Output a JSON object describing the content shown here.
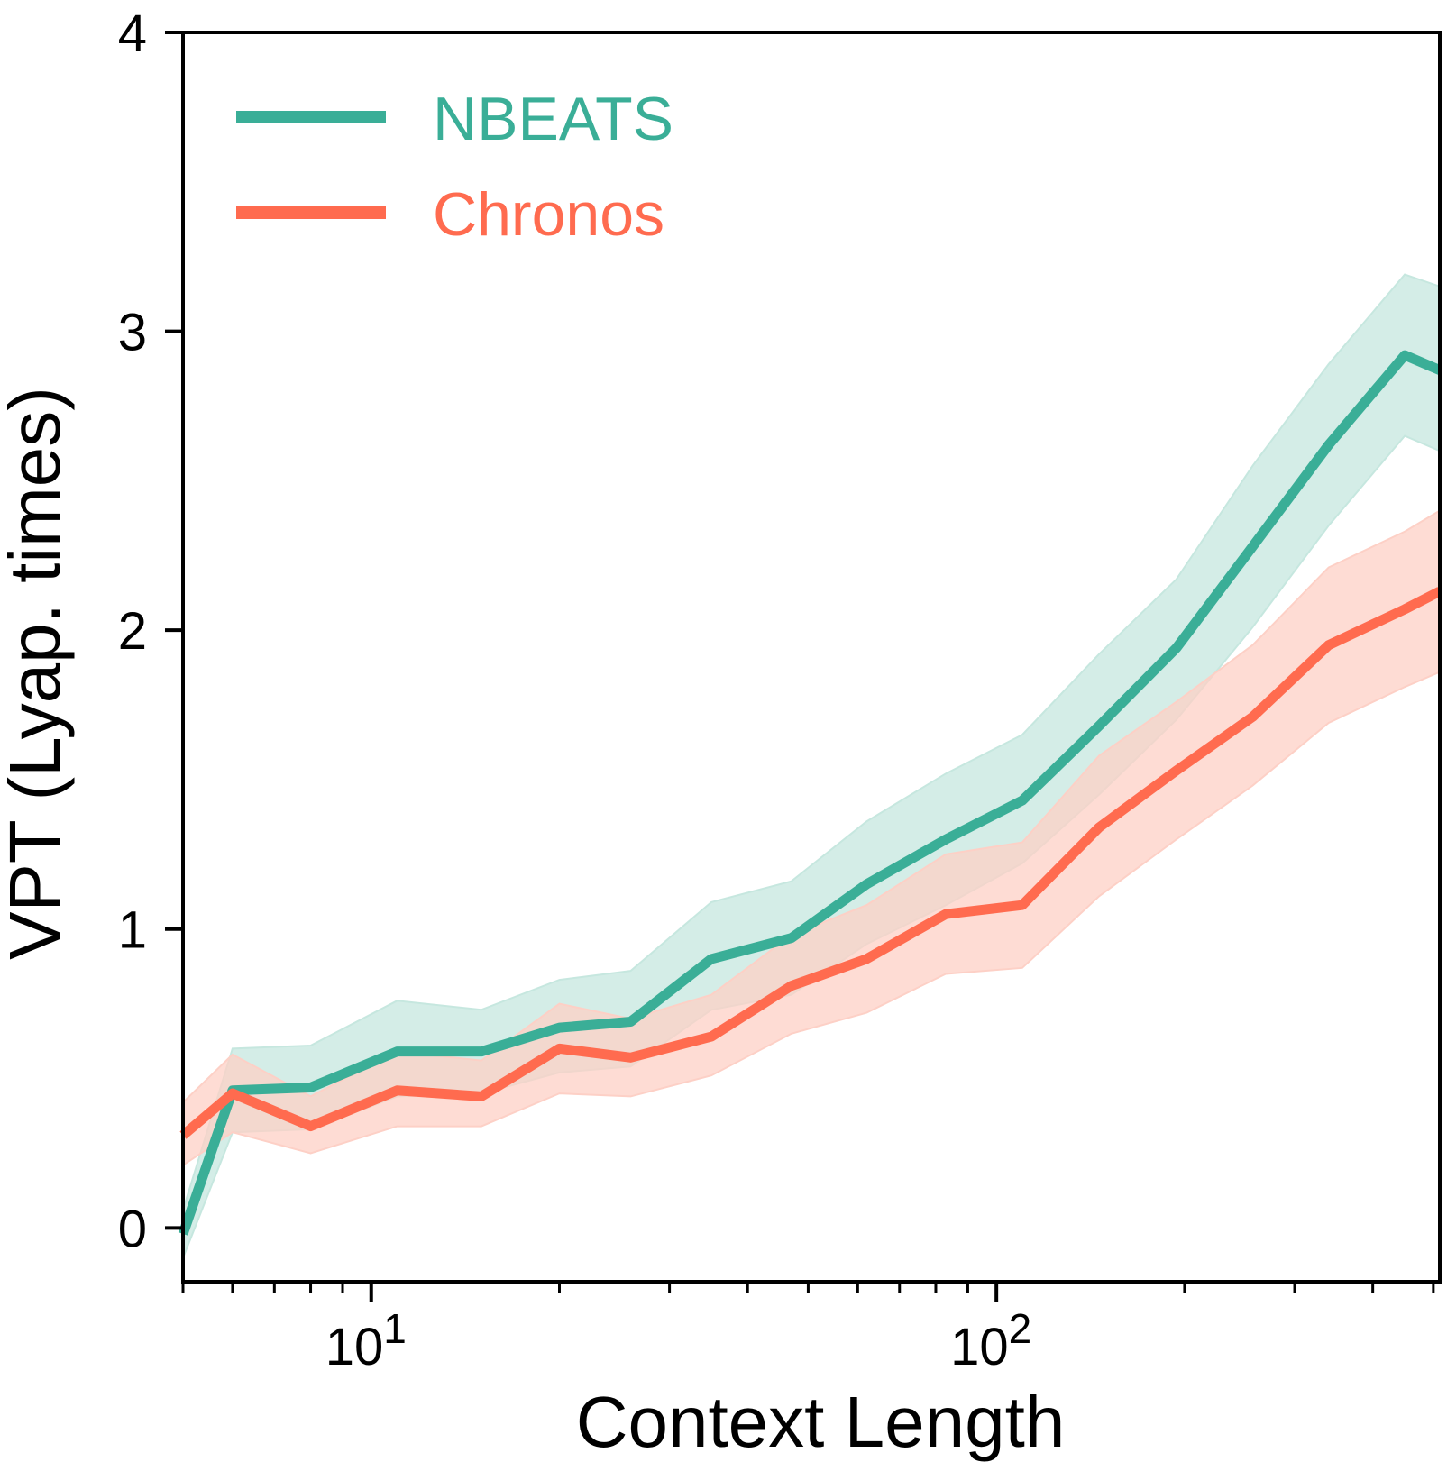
{
  "chart_data": {
    "type": "line",
    "title": "",
    "xlabel": "Context Length",
    "ylabel": "VPT (Lyap. times)",
    "xscale": "log",
    "xlim": [
      5,
      512
    ],
    "ylim": [
      -0.18,
      4
    ],
    "yticks": [
      0,
      1,
      2,
      3,
      4
    ],
    "ytick_labels": [
      "0",
      "1",
      "2",
      "3",
      "4"
    ],
    "xticks_major": [
      10,
      100
    ],
    "xtick_base_labels": [
      "10",
      "10"
    ],
    "xtick_exp_labels": [
      "1",
      "2"
    ],
    "grid": false,
    "legend_position": "top-left",
    "x": [
      5,
      6,
      8,
      11,
      15,
      20,
      26,
      35,
      47,
      62,
      83,
      110,
      146,
      194,
      257,
      340,
      450,
      512
    ],
    "series": [
      {
        "name": "NBEATS",
        "color": "#3AAE97",
        "band_color": "#C6E7DF",
        "values": [
          -0.02,
          0.46,
          0.47,
          0.59,
          0.59,
          0.67,
          0.69,
          0.9,
          0.97,
          1.15,
          1.3,
          1.43,
          1.68,
          1.94,
          2.28,
          2.62,
          2.92,
          2.87
        ],
        "lower": [
          -0.1,
          0.32,
          0.33,
          0.44,
          0.45,
          0.52,
          0.54,
          0.73,
          0.78,
          0.95,
          1.08,
          1.22,
          1.45,
          1.7,
          2.01,
          2.35,
          2.65,
          2.6
        ],
        "upper": [
          0.06,
          0.6,
          0.61,
          0.76,
          0.73,
          0.83,
          0.86,
          1.09,
          1.16,
          1.36,
          1.52,
          1.65,
          1.92,
          2.17,
          2.55,
          2.89,
          3.19,
          3.15
        ]
      },
      {
        "name": "Chronos",
        "color": "#FF6B4F",
        "band_color": "#FDD0C6",
        "values": [
          0.31,
          0.45,
          0.34,
          0.46,
          0.44,
          0.6,
          0.57,
          0.64,
          0.81,
          0.9,
          1.05,
          1.08,
          1.34,
          1.53,
          1.71,
          1.95,
          2.07,
          2.13
        ],
        "lower": [
          0.21,
          0.32,
          0.25,
          0.34,
          0.34,
          0.45,
          0.44,
          0.51,
          0.65,
          0.72,
          0.85,
          0.87,
          1.11,
          1.3,
          1.48,
          1.69,
          1.81,
          1.86
        ],
        "upper": [
          0.42,
          0.58,
          0.44,
          0.59,
          0.56,
          0.75,
          0.7,
          0.78,
          0.98,
          1.08,
          1.25,
          1.29,
          1.58,
          1.76,
          1.95,
          2.21,
          2.33,
          2.4
        ]
      }
    ]
  }
}
